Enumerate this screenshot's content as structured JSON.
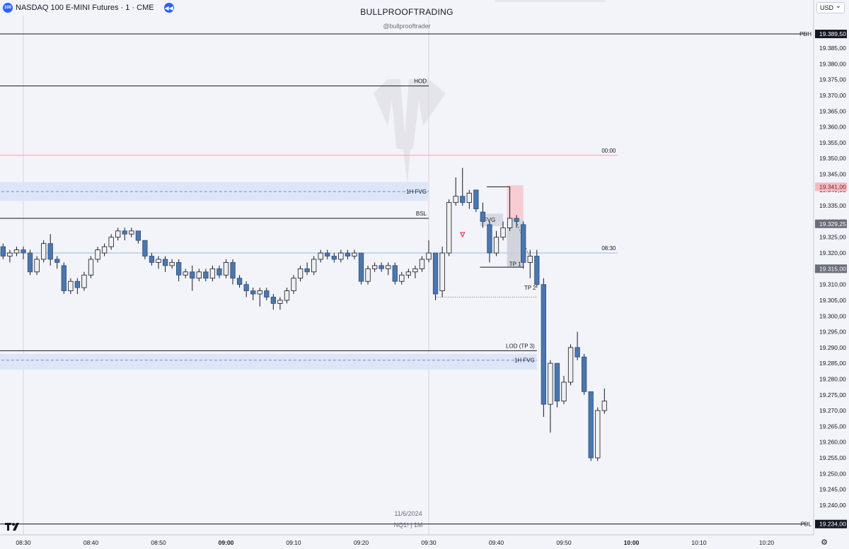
{
  "header": {
    "symbol_badge": "100",
    "title": "NASDAQ 100 E-MINI Futures · 1 · CME",
    "replay_icon": "rewind-icon"
  },
  "watermark": {
    "brand": "BULLPROOFTRADING",
    "handle": "@bullprooftrader",
    "date": "11/6/2024",
    "ticker": "NQ1! | 1M"
  },
  "currency": "USD",
  "chart_data": {
    "type": "candlestick",
    "x_axis": {
      "labels": [
        "08:30",
        "08:40",
        "08:50",
        "09:00",
        "09:10",
        "09:20",
        "09:30",
        "09:40",
        "09:50",
        "10:00",
        "10:10",
        "10:20"
      ],
      "bold": [
        "09:00",
        "10:00"
      ]
    },
    "y_axis": {
      "range": [
        19230,
        19395
      ],
      "ticks": [
        19240,
        19245,
        19250,
        19255,
        19260,
        19265,
        19270,
        19275,
        19280,
        19285,
        19290,
        19295,
        19300,
        19305,
        19310,
        19315,
        19320,
        19325,
        19330,
        19335,
        19340,
        19345,
        19350,
        19355,
        19360,
        19365,
        19370,
        19375,
        19380,
        19385
      ],
      "tick_labels": [
        "19.240,00",
        "19.245,00",
        "19.250,00",
        "19.255,00",
        "19.260,00",
        "19.265,00",
        "19.270,00",
        "19.275,00",
        "19.280,00",
        "19.285,00",
        "19.290,00",
        "19.295,00",
        "19.300,00",
        "19.305,00",
        "19.310,00",
        "19.315,00",
        "19.320,00",
        "19.325,00",
        "19.330,00",
        "19.335,00",
        "19.340,00",
        "19.345,00",
        "19.350,00",
        "19.355,00",
        "19.360,00",
        "19.365,00",
        "19.370,00",
        "19.375,00",
        "19.380,00",
        "19.385,00"
      ]
    },
    "price_tags": [
      {
        "value": 19389.5,
        "label": "19.389,50",
        "side": "PDH",
        "color": "#131722"
      },
      {
        "value": 19341.0,
        "label": "19.341,00",
        "color": "#f7b9bf",
        "text_color": "#7a2430"
      },
      {
        "value": 19329.25,
        "label": "19.329,25",
        "color": "#6a6d78"
      },
      {
        "value": 19315.0,
        "label": "19.315,00",
        "color": "#6a6d78"
      },
      {
        "value": 19234.0,
        "label": "19.234,00",
        "side": "PDL",
        "color": "#131722"
      }
    ],
    "levels": [
      {
        "value": 19389.5,
        "color": "#131722",
        "from": "08:26",
        "to": "10:26"
      },
      {
        "value": 19373.0,
        "label": "HOD",
        "color": "#131722",
        "from": "08:26",
        "to": "09:30"
      },
      {
        "value": 19351.0,
        "label": "00:00",
        "color": "#f4a3a3",
        "from": "08:26",
        "to": "09:58"
      },
      {
        "value": 19331.0,
        "label": "BSL",
        "color": "#131722",
        "from": "08:26",
        "to": "09:30"
      },
      {
        "value": 19320.0,
        "label": "08:30",
        "color": "#9ab8e8",
        "from": "08:26",
        "to": "09:58"
      },
      {
        "value": 19289.0,
        "label": "LOD (TP 3)",
        "color": "#131722",
        "from": "08:26",
        "to": "09:46"
      },
      {
        "value": 19234.0,
        "color": "#131722",
        "from": "08:26",
        "to": "10:26"
      }
    ],
    "zones": [
      {
        "label": "1H FVG",
        "high": 19342.5,
        "low": 19336.5,
        "mid": 19339.5,
        "from": "08:26",
        "to": "09:30"
      },
      {
        "label": "1H FVG",
        "high": 19288.0,
        "low": 19283.0,
        "mid": 19286.0,
        "from": "08:26",
        "to": "09:46"
      }
    ],
    "annotations": [
      {
        "label": "FVG",
        "time": "09:39",
        "price": 19330.5
      },
      {
        "label": "TP 1",
        "time": "09:43",
        "price": 19316.5
      },
      {
        "label": "TP 2",
        "time": "09:45",
        "price": 19309.0
      }
    ],
    "candles": [
      {
        "t": "08:27",
        "o": 19322,
        "h": 19323,
        "l": 19318,
        "c": 19319
      },
      {
        "t": "08:28",
        "o": 19319,
        "h": 19321,
        "l": 19317,
        "c": 19320
      },
      {
        "t": "08:29",
        "o": 19320,
        "h": 19322,
        "l": 19319,
        "c": 19321
      },
      {
        "t": "08:30",
        "o": 19321,
        "h": 19322,
        "l": 19318,
        "c": 19320
      },
      {
        "t": "08:31",
        "o": 19320,
        "h": 19321,
        "l": 19313,
        "c": 19314
      },
      {
        "t": "08:32",
        "o": 19314,
        "h": 19319,
        "l": 19313,
        "c": 19318
      },
      {
        "t": "08:33",
        "o": 19318,
        "h": 19324,
        "l": 19317,
        "c": 19323
      },
      {
        "t": "08:34",
        "o": 19323,
        "h": 19326,
        "l": 19316,
        "c": 19318
      },
      {
        "t": "08:35",
        "o": 19318,
        "h": 19319,
        "l": 19315,
        "c": 19317
      },
      {
        "t": "08:36",
        "o": 19316,
        "h": 19317,
        "l": 19307,
        "c": 19308
      },
      {
        "t": "08:37",
        "o": 19308,
        "h": 19312,
        "l": 19307,
        "c": 19311
      },
      {
        "t": "08:38",
        "o": 19311,
        "h": 19312,
        "l": 19307,
        "c": 19309
      },
      {
        "t": "08:39",
        "o": 19309,
        "h": 19314,
        "l": 19308,
        "c": 19313
      },
      {
        "t": "08:40",
        "o": 19313,
        "h": 19319,
        "l": 19312,
        "c": 19318
      },
      {
        "t": "08:41",
        "o": 19318,
        "h": 19322,
        "l": 19317,
        "c": 19321
      },
      {
        "t": "08:42",
        "o": 19320,
        "h": 19323,
        "l": 19319,
        "c": 19322
      },
      {
        "t": "08:43",
        "o": 19322,
        "h": 19326,
        "l": 19321,
        "c": 19325
      },
      {
        "t": "08:44",
        "o": 19325,
        "h": 19328,
        "l": 19324,
        "c": 19327
      },
      {
        "t": "08:45",
        "o": 19327,
        "h": 19328,
        "l": 19324,
        "c": 19326
      },
      {
        "t": "08:46",
        "o": 19326,
        "h": 19328,
        "l": 19325,
        "c": 19327
      },
      {
        "t": "08:47",
        "o": 19327,
        "h": 19327,
        "l": 19323,
        "c": 19324
      },
      {
        "t": "08:48",
        "o": 19324,
        "h": 19324,
        "l": 19318,
        "c": 19319
      },
      {
        "t": "08:49",
        "o": 19319,
        "h": 19320,
        "l": 19316,
        "c": 19317
      },
      {
        "t": "08:50",
        "o": 19317,
        "h": 19319,
        "l": 19315,
        "c": 19318
      },
      {
        "t": "08:51",
        "o": 19318,
        "h": 19319,
        "l": 19314,
        "c": 19316
      },
      {
        "t": "08:52",
        "o": 19316,
        "h": 19318,
        "l": 19315,
        "c": 19317
      },
      {
        "t": "08:53",
        "o": 19317,
        "h": 19318,
        "l": 19311,
        "c": 19313
      },
      {
        "t": "08:54",
        "o": 19313,
        "h": 19315,
        "l": 19312,
        "c": 19314
      },
      {
        "t": "08:55",
        "o": 19314,
        "h": 19316,
        "l": 19308,
        "c": 19312
      },
      {
        "t": "08:56",
        "o": 19312,
        "h": 19315,
        "l": 19311,
        "c": 19314
      },
      {
        "t": "08:57",
        "o": 19314,
        "h": 19315,
        "l": 19311,
        "c": 19312
      },
      {
        "t": "08:58",
        "o": 19312,
        "h": 19316,
        "l": 19311,
        "c": 19315
      },
      {
        "t": "08:59",
        "o": 19315,
        "h": 19316,
        "l": 19312,
        "c": 19313
      },
      {
        "t": "09:00",
        "o": 19313,
        "h": 19318,
        "l": 19312,
        "c": 19317
      },
      {
        "t": "09:01",
        "o": 19317,
        "h": 19318,
        "l": 19310,
        "c": 19312
      },
      {
        "t": "09:02",
        "o": 19312,
        "h": 19313,
        "l": 19309,
        "c": 19310
      },
      {
        "t": "09:03",
        "o": 19310,
        "h": 19311,
        "l": 19306,
        "c": 19308
      },
      {
        "t": "09:04",
        "o": 19308,
        "h": 19309,
        "l": 19305,
        "c": 19307
      },
      {
        "t": "09:05",
        "o": 19307,
        "h": 19309,
        "l": 19303,
        "c": 19308
      },
      {
        "t": "09:06",
        "o": 19308,
        "h": 19309,
        "l": 19305,
        "c": 19306
      },
      {
        "t": "09:07",
        "o": 19306,
        "h": 19307,
        "l": 19302,
        "c": 19304
      },
      {
        "t": "09:08",
        "o": 19304,
        "h": 19306,
        "l": 19302,
        "c": 19305
      },
      {
        "t": "09:09",
        "o": 19305,
        "h": 19309,
        "l": 19304,
        "c": 19308
      },
      {
        "t": "09:10",
        "o": 19308,
        "h": 19313,
        "l": 19307,
        "c": 19312
      },
      {
        "t": "09:11",
        "o": 19312,
        "h": 19316,
        "l": 19311,
        "c": 19315
      },
      {
        "t": "09:12",
        "o": 19315,
        "h": 19317,
        "l": 19313,
        "c": 19314
      },
      {
        "t": "09:13",
        "o": 19314,
        "h": 19319,
        "l": 19313,
        "c": 19318
      },
      {
        "t": "09:14",
        "o": 19318,
        "h": 19321,
        "l": 19317,
        "c": 19320
      },
      {
        "t": "09:15",
        "o": 19320,
        "h": 19321,
        "l": 19318,
        "c": 19319
      },
      {
        "t": "09:16",
        "o": 19319,
        "h": 19320,
        "l": 19317,
        "c": 19318
      },
      {
        "t": "09:17",
        "o": 19318,
        "h": 19321,
        "l": 19317,
        "c": 19320
      },
      {
        "t": "09:18",
        "o": 19320,
        "h": 19321,
        "l": 19318,
        "c": 19319
      },
      {
        "t": "09:19",
        "o": 19319,
        "h": 19321,
        "l": 19318,
        "c": 19320
      },
      {
        "t": "09:20",
        "o": 19320,
        "h": 19320,
        "l": 19310,
        "c": 19311
      },
      {
        "t": "09:21",
        "o": 19311,
        "h": 19316,
        "l": 19310,
        "c": 19315
      },
      {
        "t": "09:22",
        "o": 19315,
        "h": 19317,
        "l": 19314,
        "c": 19316
      },
      {
        "t": "09:23",
        "o": 19316,
        "h": 19317,
        "l": 19314,
        "c": 19315
      },
      {
        "t": "09:24",
        "o": 19315,
        "h": 19317,
        "l": 19313,
        "c": 19316
      },
      {
        "t": "09:25",
        "o": 19316,
        "h": 19317,
        "l": 19310,
        "c": 19311
      },
      {
        "t": "09:26",
        "o": 19311,
        "h": 19314,
        "l": 19310,
        "c": 19313
      },
      {
        "t": "09:27",
        "o": 19313,
        "h": 19315,
        "l": 19312,
        "c": 19314
      },
      {
        "t": "09:28",
        "o": 19314,
        "h": 19316,
        "l": 19312,
        "c": 19315
      },
      {
        "t": "09:29",
        "o": 19315,
        "h": 19319,
        "l": 19314,
        "c": 19318
      },
      {
        "t": "09:30",
        "o": 19318,
        "h": 19324,
        "l": 19317,
        "c": 19320
      },
      {
        "t": "09:31",
        "o": 19320,
        "h": 19320,
        "l": 19305,
        "c": 19307
      },
      {
        "t": "09:32",
        "o": 19308,
        "h": 19322,
        "l": 19306,
        "c": 19320
      },
      {
        "t": "09:33",
        "o": 19320,
        "h": 19337,
        "l": 19319,
        "c": 19336
      },
      {
        "t": "09:34",
        "o": 19336,
        "h": 19344,
        "l": 19335,
        "c": 19338
      },
      {
        "t": "09:35",
        "o": 19338,
        "h": 19347,
        "l": 19335,
        "c": 19336
      },
      {
        "t": "09:36",
        "o": 19336,
        "h": 19340,
        "l": 19334,
        "c": 19339
      },
      {
        "t": "09:37",
        "o": 19340,
        "h": 19340,
        "l": 19333,
        "c": 19334
      },
      {
        "t": "09:38",
        "o": 19333,
        "h": 19336,
        "l": 19328,
        "c": 19330
      },
      {
        "t": "09:39",
        "o": 19329,
        "h": 19330,
        "l": 19317,
        "c": 19320
      },
      {
        "t": "09:40",
        "o": 19320,
        "h": 19327,
        "l": 19319,
        "c": 19325
      },
      {
        "t": "09:41",
        "o": 19325,
        "h": 19330,
        "l": 19324,
        "c": 19328
      },
      {
        "t": "09:42",
        "o": 19328,
        "h": 19341,
        "l": 19327,
        "c": 19331
      },
      {
        "t": "09:43",
        "o": 19331,
        "h": 19332,
        "l": 19328,
        "c": 19330
      },
      {
        "t": "09:44",
        "o": 19329,
        "h": 19330,
        "l": 19315,
        "c": 19317
      },
      {
        "t": "09:45",
        "o": 19317,
        "h": 19321,
        "l": 19312,
        "c": 19319
      },
      {
        "t": "09:46",
        "o": 19319,
        "h": 19321,
        "l": 19309,
        "c": 19310
      },
      {
        "t": "09:47",
        "o": 19310,
        "h": 19312,
        "l": 19268,
        "c": 19272
      },
      {
        "t": "09:48",
        "o": 19272,
        "h": 19286,
        "l": 19263,
        "c": 19285
      },
      {
        "t": "09:49",
        "o": 19285,
        "h": 19285,
        "l": 19271,
        "c": 19273
      },
      {
        "t": "09:50",
        "o": 19273,
        "h": 19281,
        "l": 19272,
        "c": 19279
      },
      {
        "t": "09:51",
        "o": 19279,
        "h": 19291,
        "l": 19278,
        "c": 19290
      },
      {
        "t": "09:52",
        "o": 19290,
        "h": 19295,
        "l": 19286,
        "c": 19287
      },
      {
        "t": "09:53",
        "o": 19287,
        "h": 19288,
        "l": 19275,
        "c": 19276
      },
      {
        "t": "09:54",
        "o": 19276,
        "h": 19276,
        "l": 19254,
        "c": 19255
      },
      {
        "t": "09:55",
        "o": 19255,
        "h": 19271,
        "l": 19254,
        "c": 19270
      },
      {
        "t": "09:56",
        "o": 19270,
        "h": 19277,
        "l": 19269,
        "c": 19273
      }
    ],
    "colors": {
      "up_body": "#f0f0f0",
      "up_border": "#131722",
      "down_body": "#4a77ad",
      "down_border": "#2c4f7a",
      "zone": "#dde6f8"
    }
  }
}
